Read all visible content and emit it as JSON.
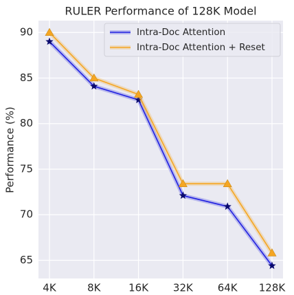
{
  "chart_data": {
    "type": "line",
    "title": "RULER Performance of 128K Model",
    "ylabel": "Performance (%)",
    "categories": [
      "4K",
      "8K",
      "16K",
      "32K",
      "64K",
      "128K"
    ],
    "series": [
      {
        "name": "Intra-Doc Attention",
        "color": "#2020e0",
        "marker": "star",
        "marker_color": "#0a0a6e",
        "values": [
          89.0,
          84.1,
          82.6,
          72.1,
          70.9,
          64.4
        ]
      },
      {
        "name": "Intra-Doc Attention + Reset",
        "color": "#f5a623",
        "marker": "triangle",
        "marker_color": "#f5a623",
        "values": [
          90.0,
          85.0,
          83.2,
          73.4,
          73.4,
          65.8
        ]
      }
    ],
    "ylim": [
      63.0,
      91.3
    ],
    "yticks": [
      65,
      70,
      75,
      80,
      85,
      90
    ],
    "grid": true,
    "legend": "upper right"
  }
}
